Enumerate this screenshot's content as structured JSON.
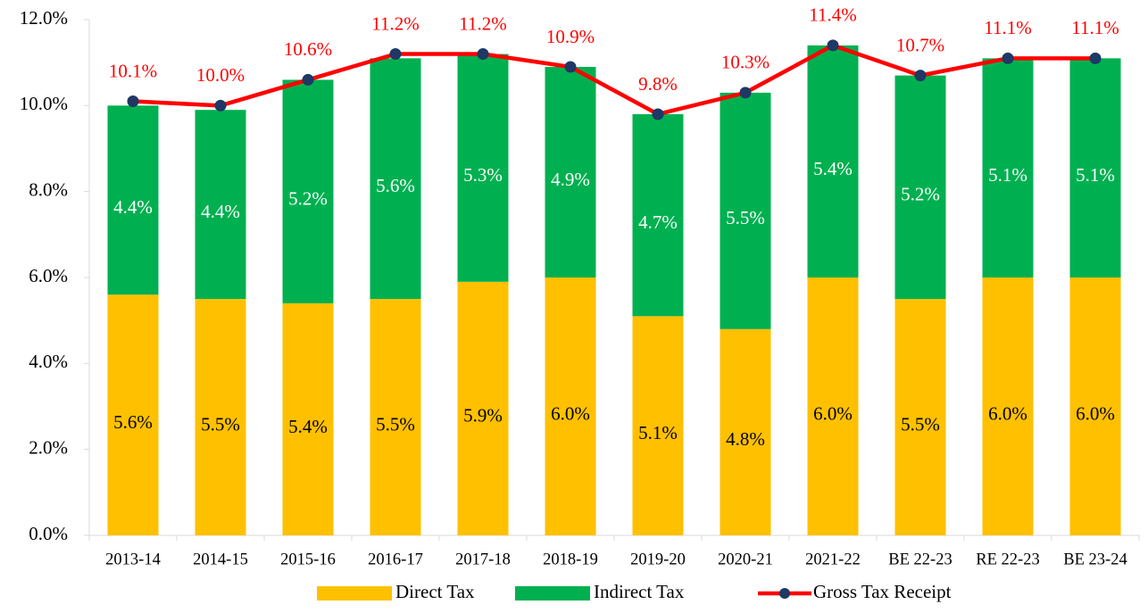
{
  "chart_data": {
    "type": "bar",
    "stacked": true,
    "categories": [
      "2013-14",
      "2014-15",
      "2015-16",
      "2016-17",
      "2017-18",
      "2018-19",
      "2019-20",
      "2020-21",
      "2021-22",
      "BE 22-23",
      "RE 22-23",
      "BE 23-24"
    ],
    "series": [
      {
        "name": "Direct Tax",
        "type": "bar",
        "color": "#FFC000",
        "label_color": "#000000",
        "values": [
          5.6,
          5.5,
          5.4,
          5.5,
          5.9,
          6.0,
          5.1,
          4.8,
          6.0,
          5.5,
          6.0,
          6.0
        ],
        "value_labels": [
          "5.6%",
          "5.5%",
          "5.4%",
          "5.5%",
          "5.9%",
          "6.0%",
          "5.1%",
          "4.8%",
          "6.0%",
          "5.5%",
          "6.0%",
          "6.0%"
        ]
      },
      {
        "name": "Indirect Tax",
        "type": "bar",
        "color": "#00B050",
        "label_color": "#FFFFFF",
        "values": [
          4.4,
          4.4,
          5.2,
          5.6,
          5.3,
          4.9,
          4.7,
          5.5,
          5.4,
          5.2,
          5.1,
          5.1
        ],
        "value_labels": [
          "4.4%",
          "4.4%",
          "5.2%",
          "5.6%",
          "5.3%",
          "4.9%",
          "4.7%",
          "5.5%",
          "5.4%",
          "5.2%",
          "5.1%",
          "5.1%"
        ]
      },
      {
        "name": "Gross Tax Receipt",
        "type": "line",
        "color": "#FF0000",
        "marker_color": "#1F3864",
        "label_color": "#FF0000",
        "values": [
          10.1,
          10.0,
          10.6,
          11.2,
          11.2,
          10.9,
          9.8,
          10.3,
          11.4,
          10.7,
          11.1,
          11.1
        ],
        "value_labels": [
          "10.1%",
          "10.0%",
          "10.6%",
          "11.2%",
          "11.2%",
          "10.9%",
          "9.8%",
          "10.3%",
          "11.4%",
          "10.7%",
          "11.1%",
          "11.1%"
        ]
      }
    ],
    "ylim": [
      0,
      12
    ],
    "yticks": [
      {
        "value": 0,
        "label": "0.0%"
      },
      {
        "value": 2,
        "label": "2.0%"
      },
      {
        "value": 4,
        "label": "4.0%"
      },
      {
        "value": 6,
        "label": "6.0%"
      },
      {
        "value": 8,
        "label": "8.0%"
      },
      {
        "value": 10,
        "label": "10.0%"
      },
      {
        "value": 12,
        "label": "12.0%"
      }
    ],
    "legend": "bottom"
  }
}
